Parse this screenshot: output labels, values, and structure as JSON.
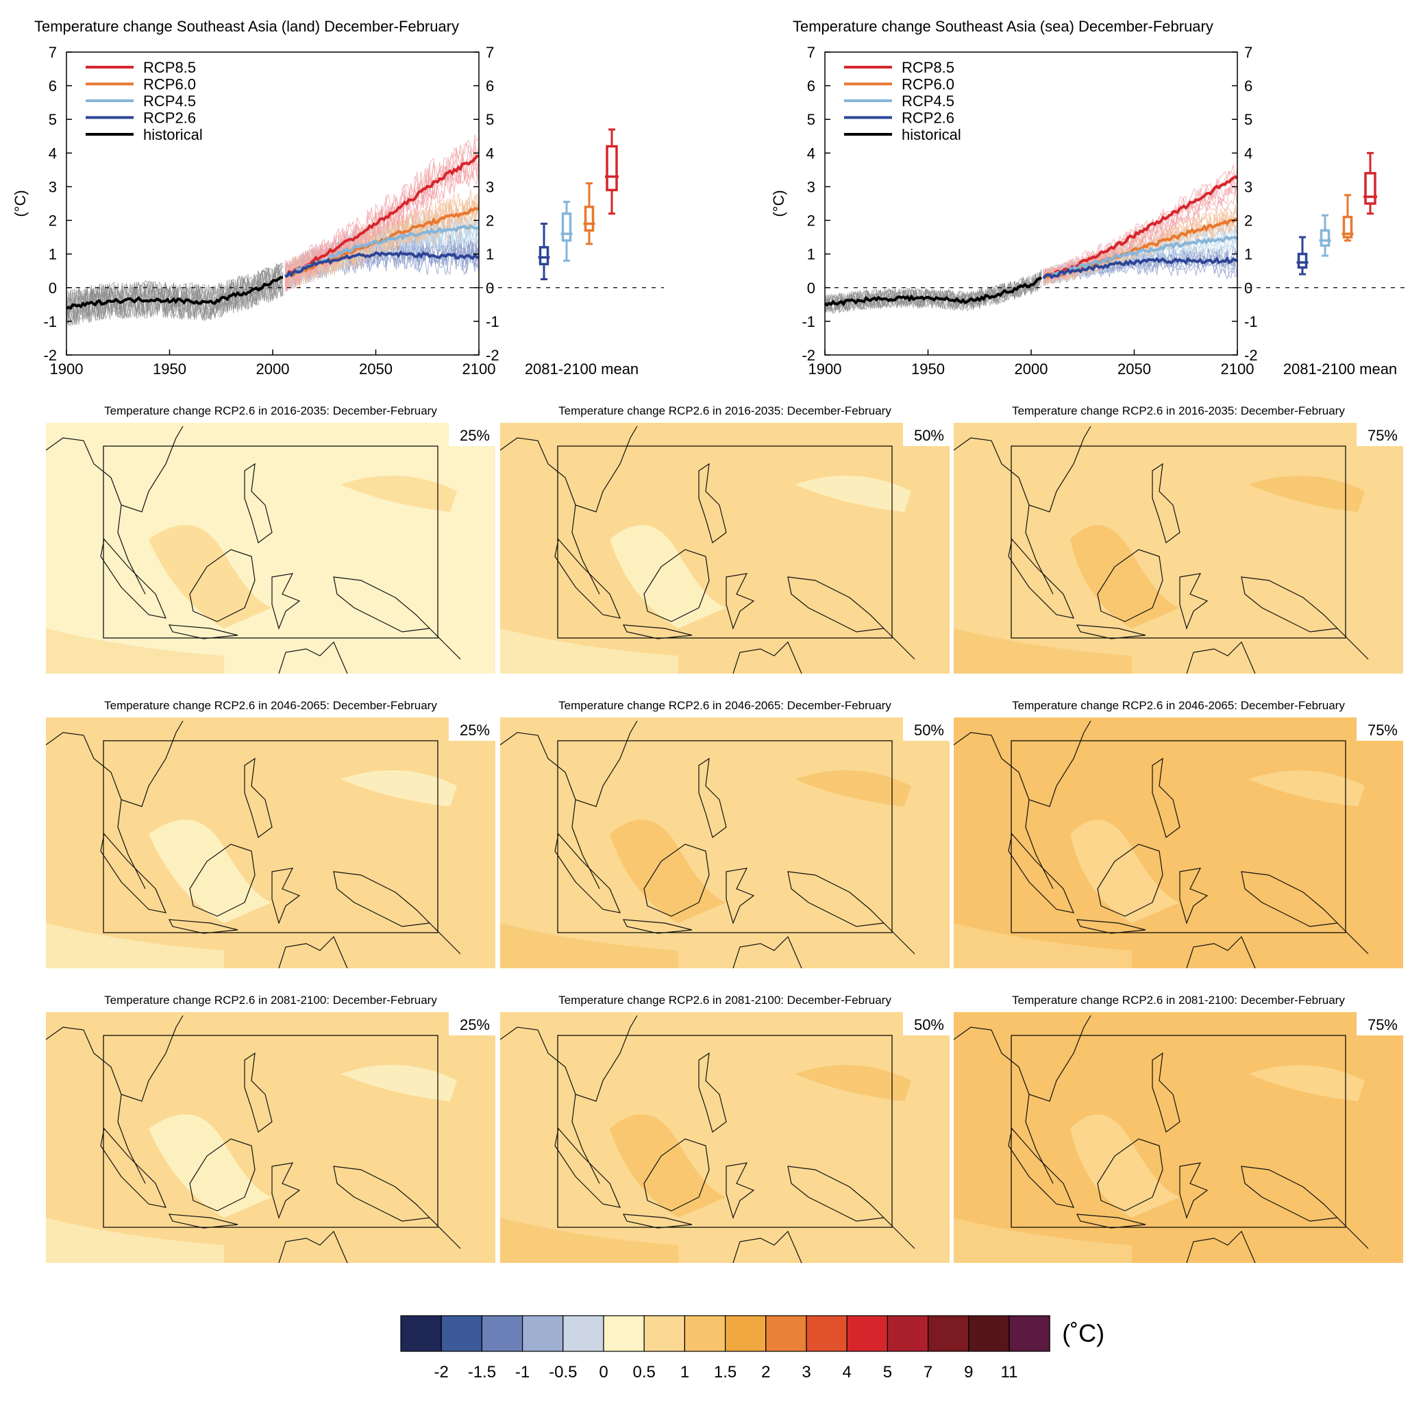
{
  "colors": {
    "rcp85": "#d6262c",
    "rcp60": "#e8782f",
    "rcp45": "#86b5d9",
    "rcp26": "#2e4596",
    "historical": "#000000",
    "historical_spread": "#8c8c8c"
  },
  "chart_data": [
    {
      "type": "line",
      "title": "Temperature change Southeast Asia (land) December-February",
      "ylabel": "(°C)",
      "xlim": [
        1900,
        2100
      ],
      "ylim": [
        -2,
        7
      ],
      "x_ticks": [
        1900,
        1950,
        2000,
        2050,
        2100
      ],
      "y_ticks": [
        -2,
        -1,
        0,
        1,
        2,
        3,
        4,
        5,
        6,
        7
      ],
      "legend_position": "top-left",
      "boxplot_label": "2081-2100 mean",
      "series": [
        {
          "name": "RCP8.5",
          "key": "rcp85",
          "x": [
            2006,
            2020,
            2040,
            2060,
            2080,
            2100
          ],
          "y": [
            0.35,
            0.8,
            1.5,
            2.3,
            3.2,
            3.9
          ]
        },
        {
          "name": "RCP6.0",
          "key": "rcp60",
          "x": [
            2006,
            2020,
            2040,
            2060,
            2080,
            2100
          ],
          "y": [
            0.35,
            0.65,
            1.1,
            1.6,
            2.0,
            2.35
          ]
        },
        {
          "name": "RCP4.5",
          "key": "rcp45",
          "x": [
            2006,
            2020,
            2040,
            2060,
            2080,
            2100
          ],
          "y": [
            0.35,
            0.7,
            1.2,
            1.5,
            1.7,
            1.8
          ]
        },
        {
          "name": "RCP2.6",
          "key": "rcp26",
          "x": [
            2006,
            2020,
            2040,
            2060,
            2080,
            2100
          ],
          "y": [
            0.35,
            0.7,
            0.95,
            1.0,
            0.95,
            0.9
          ]
        },
        {
          "name": "historical",
          "key": "historical",
          "x": [
            1900,
            1920,
            1940,
            1960,
            1970,
            1980,
            1990,
            2000,
            2005
          ],
          "y": [
            -0.6,
            -0.4,
            -0.35,
            -0.4,
            -0.45,
            -0.25,
            -0.1,
            0.15,
            0.3
          ]
        }
      ],
      "boxes": [
        {
          "key": "rcp26",
          "x": 2081,
          "whisker_low": 0.25,
          "q1": 0.7,
          "median": 0.9,
          "q3": 1.2,
          "whisker_high": 1.9
        },
        {
          "key": "rcp45",
          "x": 2083,
          "whisker_low": 0.8,
          "q1": 1.4,
          "median": 1.6,
          "q3": 2.2,
          "whisker_high": 2.55
        },
        {
          "key": "rcp60",
          "x": 2085,
          "whisker_low": 1.3,
          "q1": 1.7,
          "median": 1.9,
          "q3": 2.4,
          "whisker_high": 3.1
        },
        {
          "key": "rcp85",
          "x": 2087,
          "whisker_low": 2.2,
          "q1": 2.9,
          "median": 3.3,
          "q3": 4.2,
          "whisker_high": 4.7
        }
      ]
    },
    {
      "type": "line",
      "title": "Temperature change Southeast Asia (sea) December-February",
      "ylabel": "(°C)",
      "xlim": [
        1900,
        2100
      ],
      "ylim": [
        -2,
        7
      ],
      "x_ticks": [
        1900,
        1950,
        2000,
        2050,
        2100
      ],
      "y_ticks": [
        -2,
        -1,
        0,
        1,
        2,
        3,
        4,
        5,
        6,
        7
      ],
      "legend_position": "top-left",
      "boxplot_label": "2081-2100 mean",
      "series": [
        {
          "name": "RCP8.5",
          "key": "rcp85",
          "x": [
            2006,
            2020,
            2040,
            2060,
            2080,
            2100
          ],
          "y": [
            0.3,
            0.6,
            1.2,
            1.9,
            2.6,
            3.3
          ]
        },
        {
          "name": "RCP6.0",
          "key": "rcp60",
          "x": [
            2006,
            2020,
            2040,
            2060,
            2080,
            2100
          ],
          "y": [
            0.3,
            0.5,
            0.9,
            1.3,
            1.7,
            2.0
          ]
        },
        {
          "name": "RCP4.5",
          "key": "rcp45",
          "x": [
            2006,
            2020,
            2040,
            2060,
            2080,
            2100
          ],
          "y": [
            0.3,
            0.55,
            0.9,
            1.15,
            1.35,
            1.5
          ]
        },
        {
          "name": "RCP2.6",
          "key": "rcp26",
          "x": [
            2006,
            2020,
            2040,
            2060,
            2080,
            2100
          ],
          "y": [
            0.3,
            0.5,
            0.7,
            0.8,
            0.8,
            0.8
          ]
        },
        {
          "name": "historical",
          "key": "historical",
          "x": [
            1900,
            1920,
            1940,
            1960,
            1970,
            1980,
            1990,
            2000,
            2005
          ],
          "y": [
            -0.5,
            -0.35,
            -0.3,
            -0.35,
            -0.4,
            -0.25,
            -0.1,
            0.1,
            0.25
          ]
        }
      ],
      "boxes": [
        {
          "key": "rcp26",
          "x": 2081,
          "whisker_low": 0.4,
          "q1": 0.6,
          "median": 0.75,
          "q3": 1.0,
          "whisker_high": 1.5
        },
        {
          "key": "rcp45",
          "x": 2083,
          "whisker_low": 0.95,
          "q1": 1.25,
          "median": 1.4,
          "q3": 1.7,
          "whisker_high": 2.15
        },
        {
          "key": "rcp60",
          "x": 2085,
          "whisker_low": 1.4,
          "q1": 1.5,
          "median": 1.6,
          "q3": 2.1,
          "whisker_high": 2.75
        },
        {
          "key": "rcp85",
          "x": 2087,
          "whisker_low": 2.2,
          "q1": 2.5,
          "median": 2.7,
          "q3": 3.4,
          "whisker_high": 4.0
        }
      ]
    }
  ],
  "maps": {
    "titles": [
      "Temperature change RCP2.6 in 2016-2035: December-February",
      "Temperature change RCP2.6 in 2046-2065: December-February",
      "Temperature change RCP2.6 in 2081-2100: December-February"
    ],
    "percentiles": [
      "25%",
      "50%",
      "75%"
    ],
    "fills": [
      [
        "#fdf3c7",
        "#fbd992",
        "#fbd992"
      ],
      [
        "#fbd992",
        "#fbd992",
        "#f8c36a"
      ],
      [
        "#fbd992",
        "#fbd992",
        "#f8c36a"
      ]
    ],
    "patch": [
      [
        "#fbd992",
        "#fdf3c7",
        "#f8c36a"
      ],
      [
        "#fdf3c7",
        "#f8c36a",
        "#fbd992"
      ],
      [
        "#fdf3c7",
        "#f8c36a",
        "#fbd992"
      ]
    ]
  },
  "colorbar": {
    "unit": "(˚C)",
    "colors": [
      "#1f2757",
      "#3c5a9a",
      "#6a80b6",
      "#9eafd2",
      "#cdd6e4",
      "#fdf3c7",
      "#fbd992",
      "#f8c36a",
      "#f1a840",
      "#ea8139",
      "#e1512c",
      "#d6262c",
      "#ac1f2c",
      "#7b1a20",
      "#561519",
      "#5b1a3f"
    ],
    "labels": [
      "-2",
      "-1.5",
      "-1",
      "-0.5",
      "0",
      "0.5",
      "1",
      "1.5",
      "2",
      "3",
      "4",
      "5",
      "7",
      "9",
      "11"
    ]
  }
}
